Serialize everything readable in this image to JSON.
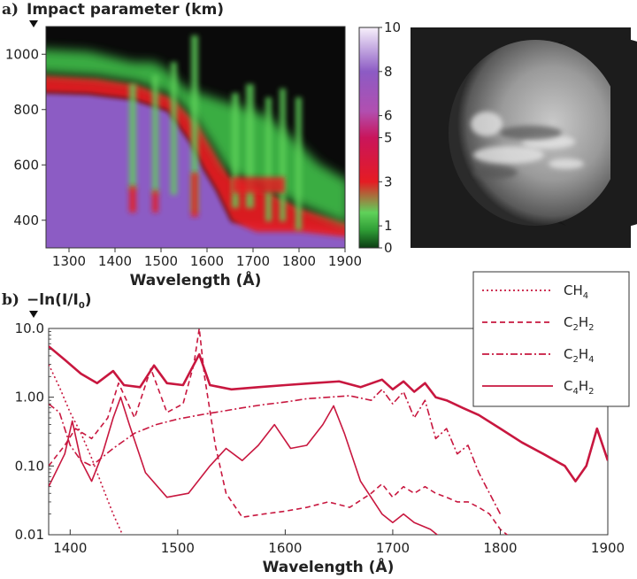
{
  "chart_data": [
    {
      "type": "heatmap",
      "panel_label": "a)",
      "title": "Impact parameter (km)",
      "xlabel": "Wavelength (Å)",
      "xlim": [
        1250,
        1900
      ],
      "ylim": [
        300,
        1100
      ],
      "x_ticks": [
        "1300",
        "1400",
        "1500",
        "1600",
        "1700",
        "1800",
        "1900"
      ],
      "y_ticks": [
        "400",
        "600",
        "800",
        "1000"
      ],
      "colorbar": {
        "range": [
          0,
          10
        ],
        "ticks": [
          "0",
          "1",
          "3",
          "5",
          "6",
          "8",
          "10"
        ],
        "colors": [
          "#0b3d12",
          "#2e9c35",
          "#5fd15a",
          "#e51c23",
          "#c9155b",
          "#b14fb0",
          "#8c5bc4",
          "#f7f0fb"
        ]
      },
      "colors": {
        "high": "#8c5bc4",
        "mid": "#e51c23",
        "low": "#3fbf4a",
        "none": "#0a0a0a"
      },
      "notes": "Optical depth vs wavelength and impact parameter; red band ~880 km below 1350 Å dropping to ~350 km above 1530 Å."
    },
    {
      "type": "line",
      "panel_label": "b)",
      "title": "−ln(I/I",
      "title_sub": "0",
      "title_end": ")",
      "xlabel": "Wavelength (Å)",
      "xlim": [
        1380,
        1900
      ],
      "ylim": [
        0.01,
        10
      ],
      "log_y": true,
      "x_ticks": [
        "1400",
        "1500",
        "1600",
        "1700",
        "1800",
        "1900"
      ],
      "y_ticks": [
        "0.01",
        "0.10",
        "1.00",
        "10.0"
      ],
      "color": "#c8173f",
      "legend_position": "top-right",
      "series": [
        {
          "name": "CH",
          "sub": "4",
          "style": "dotted",
          "x": [
            1380,
            1390,
            1400,
            1410,
            1420,
            1430,
            1440,
            1450
          ],
          "y": [
            3.0,
            1.4,
            0.6,
            0.3,
            0.13,
            0.05,
            0.02,
            0.009
          ]
        },
        {
          "name": "C",
          "sub": "2",
          "name2": "H",
          "sub2": "2",
          "style": "dashed",
          "x": [
            1380,
            1395,
            1405,
            1420,
            1435,
            1445,
            1460,
            1475,
            1490,
            1505,
            1515,
            1520,
            1525,
            1535,
            1545,
            1560,
            1580,
            1600,
            1620,
            1640,
            1660,
            1680,
            1690,
            1700,
            1710,
            1720,
            1730,
            1740,
            1750,
            1760,
            1770,
            1780,
            1790,
            1800,
            1810
          ],
          "y": [
            0.1,
            0.2,
            0.35,
            0.25,
            0.5,
            1.6,
            0.5,
            2.6,
            0.6,
            0.8,
            3.0,
            10.0,
            2.0,
            0.2,
            0.04,
            0.018,
            0.02,
            0.022,
            0.025,
            0.03,
            0.025,
            0.04,
            0.055,
            0.035,
            0.05,
            0.04,
            0.05,
            0.04,
            0.035,
            0.03,
            0.03,
            0.025,
            0.02,
            0.012,
            0.009
          ]
        },
        {
          "name": "C",
          "sub": "2",
          "name2": "H",
          "sub2": "4",
          "style": "dashdot",
          "x": [
            1380,
            1390,
            1400,
            1410,
            1420,
            1440,
            1460,
            1480,
            1500,
            1520,
            1540,
            1560,
            1580,
            1600,
            1620,
            1640,
            1660,
            1680,
            1690,
            1700,
            1710,
            1720,
            1730,
            1740,
            1750,
            1760,
            1770,
            1780,
            1790,
            1800
          ],
          "y": [
            0.8,
            0.6,
            0.2,
            0.12,
            0.1,
            0.18,
            0.3,
            0.4,
            0.48,
            0.55,
            0.62,
            0.7,
            0.78,
            0.85,
            0.95,
            1.0,
            1.05,
            0.9,
            1.3,
            0.8,
            1.2,
            0.5,
            0.9,
            0.25,
            0.35,
            0.15,
            0.2,
            0.08,
            0.04,
            0.02
          ]
        },
        {
          "name": "C",
          "sub": "4",
          "name2": "H",
          "sub2": "2",
          "style": "solid",
          "x": [
            1380,
            1395,
            1402,
            1410,
            1420,
            1430,
            1440,
            1447,
            1455,
            1470,
            1490,
            1510,
            1530,
            1545,
            1560,
            1575,
            1590,
            1605,
            1620,
            1635,
            1645,
            1655,
            1670,
            1690,
            1700,
            1710,
            1720,
            1735,
            1745
          ],
          "y": [
            0.05,
            0.15,
            0.45,
            0.12,
            0.06,
            0.15,
            0.5,
            1.0,
            0.4,
            0.08,
            0.035,
            0.04,
            0.1,
            0.18,
            0.12,
            0.2,
            0.4,
            0.18,
            0.2,
            0.4,
            0.75,
            0.3,
            0.06,
            0.02,
            0.015,
            0.02,
            0.015,
            0.012,
            0.009
          ]
        },
        {
          "name": "",
          "style": "thick",
          "x": [
            1380,
            1395,
            1410,
            1425,
            1440,
            1450,
            1465,
            1478,
            1490,
            1505,
            1520,
            1530,
            1550,
            1575,
            1600,
            1625,
            1650,
            1670,
            1690,
            1700,
            1710,
            1720,
            1730,
            1740,
            1750,
            1765,
            1780,
            1800,
            1820,
            1840,
            1860,
            1870,
            1880,
            1890,
            1900
          ],
          "y": [
            5.5,
            3.5,
            2.2,
            1.6,
            2.4,
            1.5,
            1.4,
            2.9,
            1.6,
            1.5,
            4.2,
            1.5,
            1.3,
            1.4,
            1.5,
            1.6,
            1.7,
            1.4,
            1.8,
            1.3,
            1.7,
            1.2,
            1.6,
            1.0,
            0.9,
            0.7,
            0.55,
            0.35,
            0.22,
            0.15,
            0.1,
            0.06,
            0.1,
            0.35,
            0.12
          ]
        }
      ]
    }
  ]
}
